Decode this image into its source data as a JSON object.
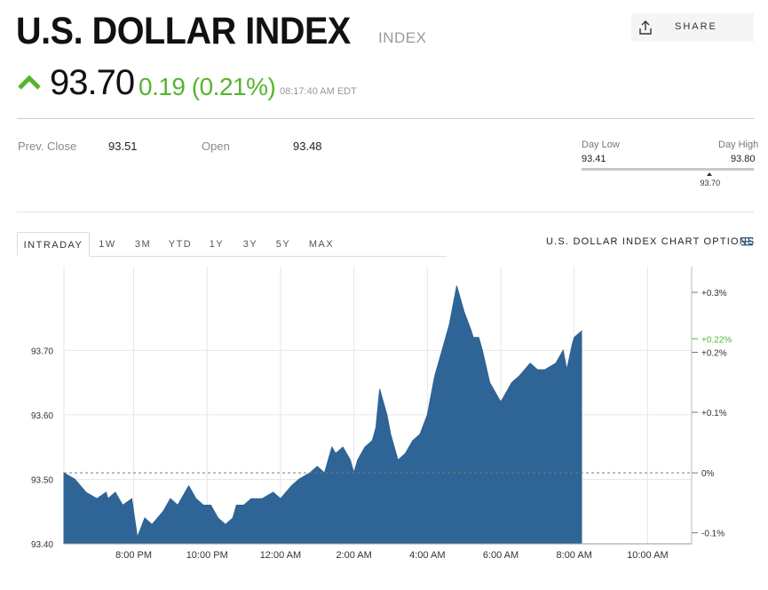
{
  "header": {
    "title": "U.S. DOLLAR INDEX",
    "type_label": "INDEX",
    "share_label": "SHARE"
  },
  "quote": {
    "price": "93.70",
    "change": "0.19 (0.21%)",
    "time": "08:17:40 AM EDT",
    "direction_icon": "arrow-up-icon",
    "change_color": "#56b52e"
  },
  "stats": {
    "prev_close_label": "Prev. Close",
    "prev_close_value": "93.51",
    "open_label": "Open",
    "open_value": "93.48",
    "day_low_label": "Day Low",
    "day_low_value": "93.41",
    "day_high_label": "Day High",
    "day_high_value": "93.80",
    "current_marker": "93.70",
    "range_position": 0.74
  },
  "tabs": [
    "INTRADAY",
    "1W",
    "3M",
    "YTD",
    "1Y",
    "3Y",
    "5Y",
    "MAX"
  ],
  "active_tab": "INTRADAY",
  "chart_options_label": "U.S. DOLLAR INDEX CHART OPTIONS",
  "chart_data": {
    "type": "area",
    "series_color": "#2e6496",
    "x_ticks": [
      "8:00 PM",
      "10:00 PM",
      "12:00 AM",
      "2:00 AM",
      "4:00 AM",
      "6:00 AM",
      "8:00 AM",
      "10:00 AM"
    ],
    "x_tick_hours": [
      20,
      22,
      24,
      26,
      28,
      30,
      32,
      34
    ],
    "x_range_hours": [
      18.1,
      35.2
    ],
    "y_ticks": [
      "93.40",
      "93.50",
      "93.60",
      "93.70"
    ],
    "y_tick_values": [
      93.4,
      93.5,
      93.6,
      93.7
    ],
    "ylim": [
      93.4,
      93.83
    ],
    "right_ticks": [
      "+0.3%",
      "+0.2%",
      "+0.1%",
      "0%",
      "-0.1%"
    ],
    "right_tick_values": [
      93.79,
      93.697,
      93.604,
      93.51,
      93.417
    ],
    "current_percent_label": "+0.22%",
    "current_percent_value": 93.718,
    "current_percent_color": "#56b52e",
    "baseline": 93.51,
    "hours": [
      18.1,
      18.4,
      18.7,
      19.0,
      19.25,
      19.3,
      19.5,
      19.7,
      19.95,
      20.05,
      20.1,
      20.3,
      20.5,
      20.8,
      21.0,
      21.2,
      21.4,
      21.5,
      21.7,
      21.9,
      22.1,
      22.3,
      22.5,
      22.7,
      22.8,
      23.0,
      23.2,
      23.5,
      23.8,
      24.0,
      24.3,
      24.5,
      24.8,
      25.0,
      25.2,
      25.4,
      25.5,
      25.7,
      25.9,
      26.0,
      26.1,
      26.3,
      26.5,
      26.6,
      26.7,
      26.9,
      27.0,
      27.2,
      27.4,
      27.6,
      27.8,
      28.0,
      28.2,
      28.4,
      28.6,
      28.8,
      29.0,
      29.2,
      29.25,
      29.4,
      29.5,
      29.7,
      30.0,
      30.3,
      30.5,
      30.8,
      31.0,
      31.2,
      31.5,
      31.7,
      31.8,
      31.95,
      32.0,
      32.2
    ],
    "values": [
      93.51,
      93.5,
      93.48,
      93.47,
      93.48,
      93.47,
      93.48,
      93.46,
      93.47,
      93.43,
      93.41,
      93.44,
      93.43,
      93.45,
      93.47,
      93.46,
      93.48,
      93.49,
      93.47,
      93.46,
      93.46,
      93.44,
      93.43,
      93.44,
      93.46,
      93.46,
      93.47,
      93.47,
      93.48,
      93.47,
      93.49,
      93.5,
      93.51,
      93.52,
      93.51,
      93.55,
      93.54,
      93.55,
      93.53,
      93.51,
      93.53,
      93.55,
      93.56,
      93.58,
      93.64,
      93.6,
      93.57,
      93.53,
      93.54,
      93.56,
      93.57,
      93.6,
      93.66,
      93.7,
      93.74,
      93.8,
      93.76,
      93.73,
      93.72,
      93.72,
      93.7,
      93.65,
      93.62,
      93.65,
      93.66,
      93.68,
      93.67,
      93.67,
      93.68,
      93.7,
      93.67,
      93.71,
      93.72,
      93.73
    ]
  }
}
